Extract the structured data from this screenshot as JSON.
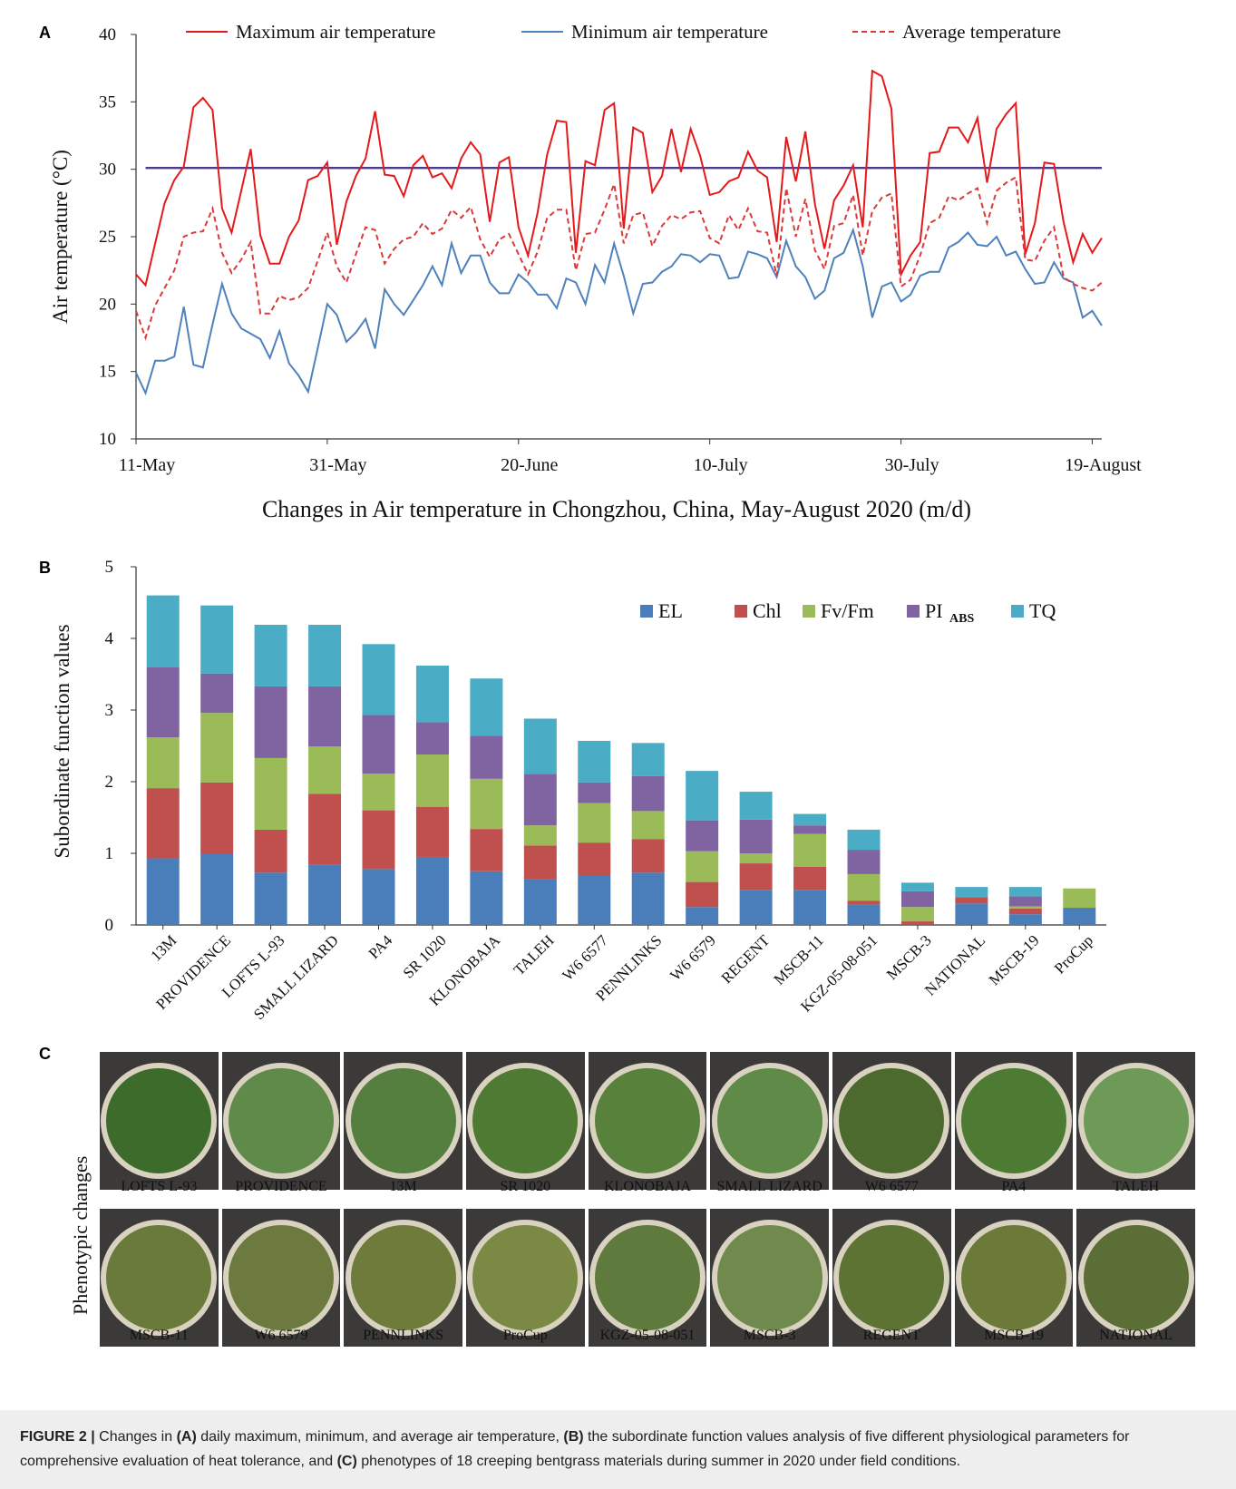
{
  "panels": {
    "a": "A",
    "b": "B",
    "c": "C"
  },
  "chart_data": [
    {
      "type": "line",
      "panel": "A",
      "title": "Changes in Air temperature in Chongzhou, China, May-August 2020 (m/d)",
      "xlabel": "",
      "ylabel": "Air temperature (°C)",
      "ylim": [
        10,
        40
      ],
      "yticks": [
        10,
        15,
        20,
        25,
        30,
        35,
        40
      ],
      "x_ticks": [
        {
          "day": 0,
          "label": "11-May"
        },
        {
          "day": 20,
          "label": "31-May"
        },
        {
          "day": 40,
          "label": "20-June"
        },
        {
          "day": 60,
          "label": "10-July"
        },
        {
          "day": 80,
          "label": "30-July"
        },
        {
          "day": 100,
          "label": "19-August"
        }
      ],
      "reference_line": {
        "y": 30.1,
        "color": "#4b3b8c"
      },
      "series": [
        {
          "name": "Maximum air temperature",
          "color": "#e4191b",
          "dash": "solid",
          "values": [
            22.2,
            21.4,
            24.5,
            27.5,
            29.2,
            30.2,
            34.6,
            35.3,
            34.4,
            27.1,
            25.3,
            28.4,
            31.5,
            25.1,
            23.0,
            23.0,
            25.0,
            26.2,
            29.2,
            29.5,
            30.5,
            24.4,
            27.6,
            29.5,
            30.8,
            34.3,
            29.6,
            29.5,
            28.0,
            30.3,
            31.0,
            29.4,
            29.7,
            28.6,
            30.8,
            32.0,
            31.1,
            26.1,
            30.5,
            30.9,
            25.7,
            23.6,
            26.8,
            31.1,
            33.6,
            33.5,
            23.8,
            30.6,
            30.3,
            34.4,
            34.9,
            25.6,
            33.1,
            32.7,
            28.3,
            29.5,
            33.0,
            29.8,
            33.0,
            31.0,
            28.1,
            28.3,
            29.1,
            29.4,
            31.3,
            29.9,
            29.4,
            24.6,
            32.4,
            29.1,
            32.8,
            27.4,
            24.1,
            27.7,
            28.8,
            30.3,
            25.7,
            37.3,
            36.9,
            34.5,
            22.2,
            23.6,
            24.6,
            31.2,
            31.3,
            33.1,
            33.1,
            32.0,
            33.8,
            29.0,
            33.0,
            34.1,
            34.9,
            23.7,
            26.0,
            30.5,
            30.4,
            26.1,
            23.1,
            25.2,
            23.8,
            24.9
          ]
        },
        {
          "name": "Minimum air temperature",
          "color": "#4f81bd",
          "dash": "solid",
          "values": [
            14.9,
            13.4,
            15.8,
            15.8,
            16.1,
            19.8,
            15.5,
            15.3,
            18.5,
            21.5,
            19.3,
            18.2,
            17.8,
            17.4,
            16.0,
            18.0,
            15.6,
            14.7,
            13.5,
            16.7,
            20.0,
            19.2,
            17.2,
            17.9,
            18.9,
            16.7,
            21.1,
            20.0,
            19.2,
            20.3,
            21.4,
            22.8,
            21.4,
            24.5,
            22.3,
            23.6,
            23.6,
            21.6,
            20.8,
            20.8,
            22.2,
            21.6,
            20.7,
            20.7,
            19.7,
            21.9,
            21.6,
            20.0,
            22.9,
            21.6,
            24.5,
            22.1,
            19.3,
            21.5,
            21.6,
            22.4,
            22.8,
            23.7,
            23.6,
            23.1,
            23.7,
            23.6,
            21.9,
            22.0,
            23.9,
            23.7,
            23.4,
            22.0,
            24.7,
            22.8,
            22.0,
            20.4,
            21.0,
            23.4,
            23.8,
            25.5,
            22.8,
            19.0,
            21.3,
            21.6,
            20.2,
            20.7,
            22.1,
            22.4,
            22.4,
            24.2,
            24.6,
            25.3,
            24.4,
            24.3,
            25.0,
            23.6,
            23.9,
            22.6,
            21.5,
            21.6,
            23.1,
            21.9,
            21.6,
            19.0,
            19.5,
            18.4
          ]
        },
        {
          "name": "Average temperature",
          "color": "#d93b3b",
          "dash": "dashed",
          "values": [
            19.5,
            17.5,
            19.9,
            21.2,
            22.5,
            25.0,
            25.3,
            25.4,
            27.1,
            23.8,
            22.3,
            23.3,
            24.6,
            19.3,
            19.3,
            20.6,
            20.3,
            20.5,
            21.2,
            23.2,
            25.3,
            22.8,
            21.6,
            23.7,
            25.7,
            25.5,
            23.0,
            24.1,
            24.8,
            25.0,
            26.0,
            25.2,
            25.6,
            27.0,
            26.4,
            27.2,
            24.8,
            23.5,
            24.8,
            25.2,
            23.7,
            22.2,
            23.9,
            26.4,
            27.0,
            27.0,
            22.5,
            25.2,
            25.3,
            27.0,
            28.9,
            24.5,
            26.6,
            26.8,
            24.3,
            25.8,
            26.6,
            26.3,
            26.8,
            26.9,
            24.9,
            24.5,
            26.6,
            25.5,
            27.1,
            25.4,
            25.3,
            22.1,
            28.6,
            25.0,
            27.8,
            24.0,
            22.6,
            25.8,
            26.0,
            28.1,
            23.6,
            26.9,
            27.9,
            28.2,
            21.3,
            21.8,
            23.6,
            26.0,
            26.4,
            28.0,
            27.7,
            28.2,
            28.6,
            26.0,
            28.4,
            29.0,
            29.4,
            23.3,
            23.2,
            24.7,
            25.7,
            22.0,
            21.5,
            21.2,
            21.0,
            21.6
          ]
        }
      ]
    },
    {
      "type": "bar",
      "stacked": true,
      "panel": "B",
      "title": "",
      "xlabel": "",
      "ylabel": "Subordinate function values",
      "ylim": [
        0,
        5
      ],
      "yticks": [
        0,
        1,
        2,
        3,
        4,
        5
      ],
      "legend_position": "top-right",
      "categories": [
        "13M",
        "PROVIDENCE",
        "LOFTS L-93",
        "SMALL LIZARD",
        "PA4",
        "SR 1020",
        "KLONOBAJA",
        "TALEH",
        "W6 6577",
        "PENNLINKS",
        "W6 6579",
        "REGENT",
        "MSCB-11",
        "KGZ-05-08-051",
        "MSCB-3",
        "NATIONAL",
        "MSCB-19",
        "ProCup"
      ],
      "series": [
        {
          "name": "EL",
          "color": "#4a7ebb",
          "values": [
            0.93,
            1.0,
            0.73,
            0.84,
            0.78,
            0.95,
            0.75,
            0.64,
            0.69,
            0.73,
            0.25,
            0.49,
            0.49,
            0.29,
            0.0,
            0.3,
            0.15,
            0.24
          ]
        },
        {
          "name": "Chl",
          "color": "#c0504d",
          "values": [
            0.98,
            0.99,
            0.6,
            0.99,
            0.82,
            0.7,
            0.59,
            0.47,
            0.46,
            0.47,
            0.35,
            0.37,
            0.32,
            0.05,
            0.05,
            0.09,
            0.08,
            0.0
          ]
        },
        {
          "name": "Fv/Fm",
          "color": "#9bbb59",
          "values": [
            0.71,
            0.97,
            1.0,
            0.66,
            0.51,
            0.73,
            0.7,
            0.28,
            0.55,
            0.39,
            0.43,
            0.14,
            0.46,
            0.37,
            0.2,
            0.0,
            0.03,
            0.27
          ]
        },
        {
          "name": "PI",
          "name_sub": "ABS",
          "color": "#8064a2",
          "values": [
            0.98,
            0.55,
            1.0,
            0.84,
            0.82,
            0.45,
            0.6,
            0.72,
            0.29,
            0.49,
            0.43,
            0.47,
            0.12,
            0.34,
            0.22,
            0.0,
            0.14,
            0.0
          ]
        },
        {
          "name": "TQ",
          "color": "#4bacc6",
          "values": [
            1.0,
            0.95,
            0.86,
            0.86,
            0.99,
            0.79,
            0.8,
            0.77,
            0.58,
            0.46,
            0.69,
            0.39,
            0.16,
            0.28,
            0.12,
            0.14,
            0.13,
            0.0
          ]
        }
      ]
    }
  ],
  "phenotypes": {
    "ylabel": "Phenotypic  changes",
    "row1": [
      {
        "label": "LOFTS L-93",
        "color": "#3d6b2c"
      },
      {
        "label": "PROVIDENCE",
        "color": "#5f8a4a"
      },
      {
        "label": "13M",
        "color": "#557f3f"
      },
      {
        "label": "SR 1020",
        "color": "#4f7a34"
      },
      {
        "label": "KLONOBAJA",
        "color": "#58813c"
      },
      {
        "label": "SMALL LIZARD",
        "color": "#5f8a48"
      },
      {
        "label": "W6 6577",
        "color": "#4c6a2e"
      },
      {
        "label": "PA4",
        "color": "#4d7b34"
      },
      {
        "label": "TALEH",
        "color": "#6d9a56"
      }
    ],
    "row2": [
      {
        "label": "MSCB-11",
        "color": "#6a7a3a"
      },
      {
        "label": "W6 6579",
        "color": "#6d7a3f"
      },
      {
        "label": "PENNLINKS",
        "color": "#6e7b3b"
      },
      {
        "label": "ProCup",
        "color": "#7a8a45"
      },
      {
        "label": "KGZ-05-08-051",
        "color": "#5e7a3c"
      },
      {
        "label": "MSCB-3",
        "color": "#6f8a4c"
      },
      {
        "label": "REGENT",
        "color": "#5c7334"
      },
      {
        "label": "MSCB-19",
        "color": "#6b7a38"
      },
      {
        "label": "NATIONAL",
        "color": "#5a6e35"
      }
    ]
  },
  "caption": {
    "label": "FIGURE 2 |",
    "t1": " Changes in ",
    "a": "(A)",
    "t2": " daily maximum, minimum, and average air temperature, ",
    "b": "(B)",
    "t3": " the subordinate function values analysis of five different physiological parameters for comprehensive evaluation of heat tolerance, and ",
    "c": "(C)",
    "t4": " phenotypes of 18 creeping bentgrass materials during summer in 2020 under field conditions."
  }
}
